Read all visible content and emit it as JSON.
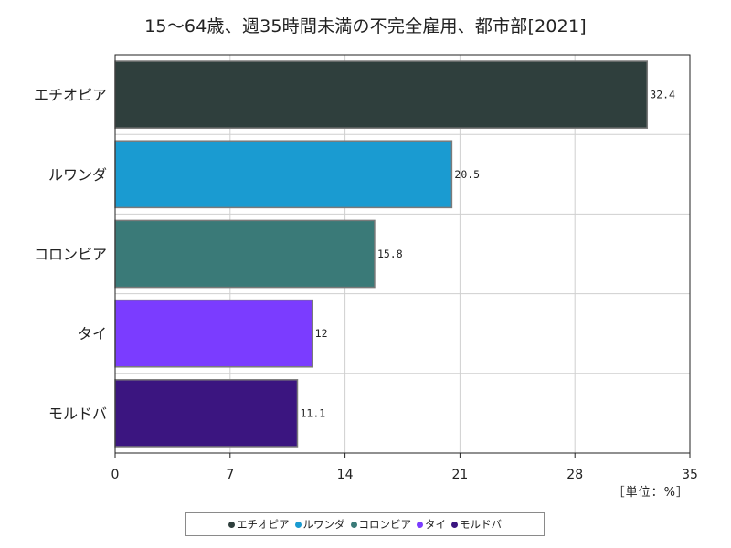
{
  "chart_data": {
    "type": "bar",
    "orientation": "horizontal",
    "title": "15～64歳、週35時間未満の不完全雇用、都市部[2021]",
    "unit_label": "［単位：%］",
    "categories": [
      "エチオピア",
      "ルワンダ",
      "コロンビア",
      "タイ",
      "モルドバ"
    ],
    "values": [
      32.4,
      20.5,
      15.8,
      12,
      11.1
    ],
    "value_labels": [
      "32.4",
      "20.5",
      "15.8",
      "12",
      "11.1"
    ],
    "colors": [
      "#2f3f3d",
      "#1a9bd1",
      "#3a7a78",
      "#7b3cff",
      "#3b1580"
    ],
    "xlim": [
      0,
      35
    ],
    "xticks": [
      0,
      7,
      14,
      21,
      28,
      35
    ],
    "grid": true,
    "legend_position": "bottom"
  }
}
